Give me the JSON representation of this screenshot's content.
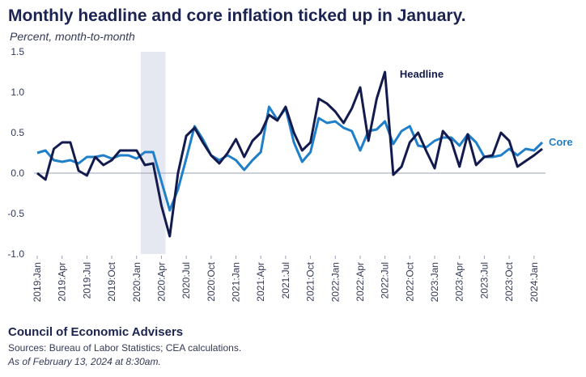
{
  "title": "Monthly headline and core inflation ticked up in January.",
  "subtitle": "Percent, month-to-month",
  "footer": {
    "organization": "Council of Economic Advisers",
    "sources": "Sources: Bureau of Labor Statistics; CEA calculations.",
    "as_of": "As of February 13, 2024 at 8:30am."
  },
  "colors": {
    "headline": "#131a4d",
    "core": "#1f7fc8",
    "recession": "#e6e8f1",
    "zero_line": "#9aa0b4"
  },
  "chart_data": {
    "type": "line",
    "title": "Monthly headline and core inflation ticked up in January.",
    "ylabel": "Percent, month-to-month",
    "xlabel": "",
    "ylim": [
      -1.0,
      1.5
    ],
    "yticks": [
      "1.5",
      "1.0",
      "0.5",
      "0.0",
      "-0.5",
      "-1.0"
    ],
    "ytick_values": [
      1.5,
      1.0,
      0.5,
      0.0,
      -0.5,
      -1.0
    ],
    "x_tick_labels": [
      "2019:Jan",
      "2019:Apr",
      "2019:Jul",
      "2019:Oct",
      "2020:Jan",
      "2020:Apr",
      "2020:Jul",
      "2020:Oct",
      "2021:Jan",
      "2021:Apr",
      "2021:Jul",
      "2021:Oct",
      "2022:Jan",
      "2022:Apr",
      "2022:Jul",
      "2022:Oct",
      "2023:Jan",
      "2023:Apr",
      "2023:Jul",
      "2023:Oct",
      "2024:Jan"
    ],
    "shaded_period": {
      "start_index": 13,
      "end_index": 15,
      "label": "recession"
    },
    "series": [
      {
        "name": "Headline",
        "values": [
          0.0,
          -0.08,
          0.3,
          0.38,
          0.38,
          0.03,
          -0.03,
          0.2,
          0.1,
          0.16,
          0.28,
          0.28,
          0.28,
          0.1,
          0.12,
          -0.4,
          -0.78,
          0.0,
          0.46,
          0.56,
          0.38,
          0.22,
          0.12,
          0.25,
          0.42,
          0.2,
          0.4,
          0.5,
          0.72,
          0.65,
          0.82,
          0.5,
          0.28,
          0.38,
          0.92,
          0.86,
          0.76,
          0.62,
          0.8,
          1.06,
          0.4,
          0.92,
          1.25,
          -0.02,
          0.08,
          0.38,
          0.5,
          0.27,
          0.06,
          0.52,
          0.4,
          0.08,
          0.48,
          0.1,
          0.2,
          0.22,
          0.5,
          0.4,
          0.08,
          0.15,
          0.22,
          0.3
        ]
      },
      {
        "name": "Core",
        "values": [
          0.25,
          0.28,
          0.16,
          0.14,
          0.16,
          0.12,
          0.2,
          0.2,
          0.22,
          0.18,
          0.22,
          0.22,
          0.18,
          0.26,
          0.26,
          -0.1,
          -0.46,
          -0.2,
          0.18,
          0.58,
          0.42,
          0.22,
          0.16,
          0.22,
          0.16,
          0.04,
          0.16,
          0.26,
          0.82,
          0.66,
          0.8,
          0.38,
          0.14,
          0.26,
          0.68,
          0.62,
          0.64,
          0.56,
          0.52,
          0.28,
          0.52,
          0.54,
          0.64,
          0.36,
          0.52,
          0.58,
          0.34,
          0.32,
          0.4,
          0.44,
          0.44,
          0.34,
          0.48,
          0.38,
          0.2,
          0.2,
          0.22,
          0.3,
          0.22,
          0.3,
          0.28,
          0.38
        ]
      }
    ],
    "annotations": [
      "Headline",
      "Core"
    ]
  }
}
